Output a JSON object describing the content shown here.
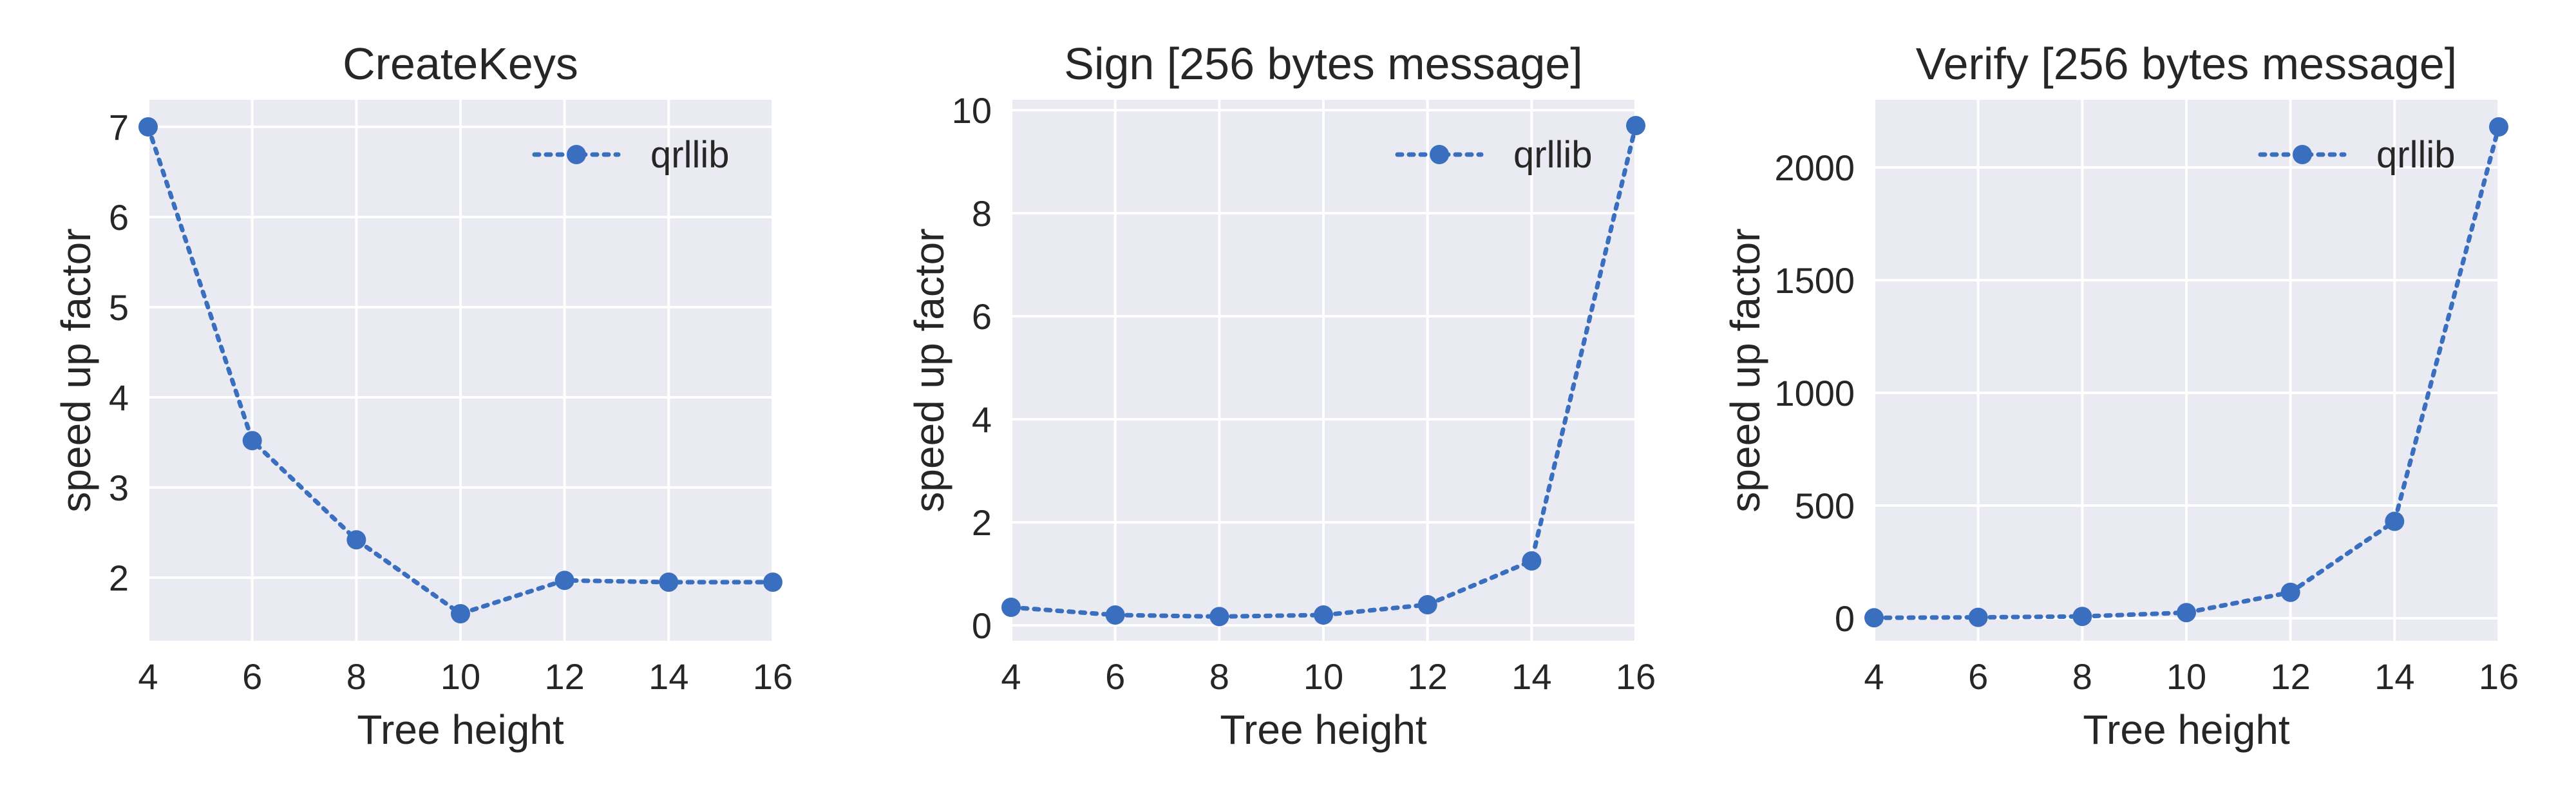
{
  "colors": {
    "series": "#3a6fbf",
    "plot_background": "#eaeaf2",
    "grid": "#ffffff"
  },
  "chart_data": [
    {
      "type": "line",
      "title": "CreateKeys",
      "xlabel": "Tree height",
      "ylabel": "speed up factor",
      "grid": true,
      "legend_position": "top-right",
      "xlim": [
        4,
        16
      ],
      "ylim": [
        1.3,
        7.3
      ],
      "xticks": [
        4,
        6,
        8,
        10,
        12,
        14,
        16
      ],
      "yticks": [
        2,
        3,
        4,
        5,
        6,
        7
      ],
      "series": [
        {
          "name": "qrllib",
          "line_style": "dotted",
          "marker": "circle",
          "x": [
            4,
            6,
            8,
            10,
            12,
            14,
            16
          ],
          "y": [
            7.0,
            3.52,
            2.42,
            1.6,
            1.97,
            1.95,
            1.95
          ]
        }
      ]
    },
    {
      "type": "line",
      "title": "Sign [256 bytes message]",
      "xlabel": "Tree height",
      "ylabel": "speed up factor",
      "grid": true,
      "legend_position": "top-right",
      "xlim": [
        4,
        16
      ],
      "ylim": [
        -0.3,
        10.2
      ],
      "xticks": [
        4,
        6,
        8,
        10,
        12,
        14,
        16
      ],
      "yticks": [
        0,
        2,
        4,
        6,
        8,
        10
      ],
      "series": [
        {
          "name": "qrllib",
          "line_style": "dotted",
          "marker": "circle",
          "x": [
            4,
            6,
            8,
            10,
            12,
            14,
            16
          ],
          "y": [
            0.35,
            0.2,
            0.17,
            0.2,
            0.4,
            1.25,
            9.7
          ]
        }
      ]
    },
    {
      "type": "line",
      "title": "Verify [256 bytes message]",
      "xlabel": "Tree height",
      "ylabel": "speed up factor",
      "grid": true,
      "legend_position": "top-right",
      "xlim": [
        4,
        16
      ],
      "ylim": [
        -100,
        2300
      ],
      "xticks": [
        4,
        6,
        8,
        10,
        12,
        14,
        16
      ],
      "yticks": [
        0,
        500,
        1000,
        1500,
        2000
      ],
      "series": [
        {
          "name": "qrllib",
          "line_style": "dotted",
          "marker": "circle",
          "x": [
            4,
            6,
            8,
            10,
            12,
            14,
            16
          ],
          "y": [
            2,
            4,
            8,
            25,
            115,
            430,
            2180
          ]
        }
      ]
    }
  ]
}
